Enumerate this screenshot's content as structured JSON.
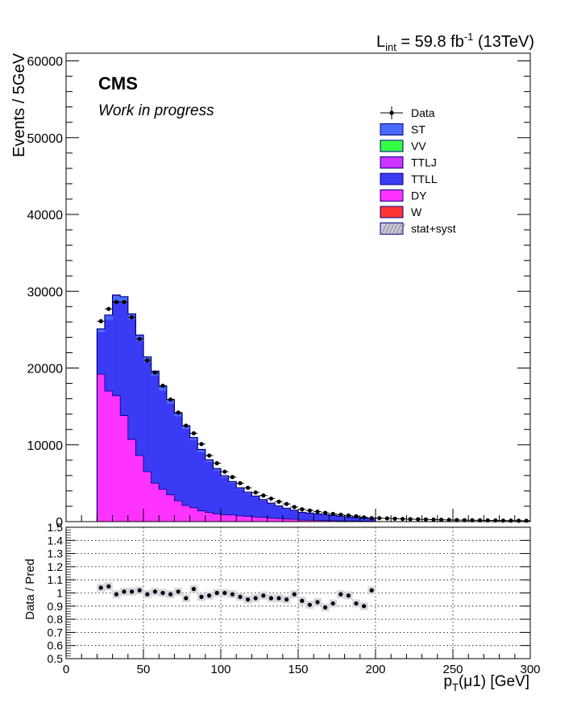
{
  "header": {
    "lumi_text": "L",
    "lumi_sub": "int",
    "lumi_value": " = 59.8 fb",
    "lumi_sup": "-1",
    "lumi_energy": " (13TeV)"
  },
  "labels": {
    "cms": "CMS",
    "status": "Work in progress"
  },
  "colors": {
    "ST": "#4a6bff",
    "VV": "#33ff44",
    "TTLJ": "#cc33ff",
    "TTLL": "#3b3bf5",
    "DY": "#ff33ff",
    "W": "#ff3333",
    "outline": "#000080"
  },
  "chart_data": [
    {
      "type": "bar",
      "subtype": "stacked-histogram",
      "ylabel": "Events / 5GeV",
      "xlim": [
        0,
        300
      ],
      "ylim": [
        0,
        61000
      ],
      "yticks": [
        0,
        10000,
        20000,
        30000,
        40000,
        50000,
        60000
      ],
      "ytick_labels": [
        "0",
        "10000",
        "20000",
        "30000",
        "40000",
        "50000",
        "60000"
      ],
      "bin_width": 5,
      "bin_lo": [
        20,
        25,
        30,
        35,
        40,
        45,
        50,
        55,
        60,
        65,
        70,
        75,
        80,
        85,
        90,
        95,
        100,
        105,
        110,
        115,
        120,
        125,
        130,
        135,
        140,
        145,
        150,
        155,
        160,
        165,
        170,
        175,
        180,
        185,
        190,
        195
      ],
      "series": [
        {
          "name": "DY",
          "values": [
            19200,
            17000,
            16400,
            13800,
            10700,
            8600,
            6500,
            5000,
            4200,
            3500,
            2700,
            2100,
            1800,
            1400,
            1200,
            1000,
            900,
            850,
            750,
            700,
            600,
            550,
            450,
            400,
            350,
            300,
            200,
            180,
            160,
            140,
            120,
            100,
            80,
            70,
            60,
            50
          ]
        },
        {
          "name": "TTLL",
          "values": [
            5500,
            9300,
            12400,
            14700,
            15600,
            15000,
            14300,
            14000,
            12900,
            11900,
            11000,
            10000,
            8800,
            7700,
            6600,
            5700,
            4900,
            4200,
            3500,
            3000,
            2600,
            2200,
            1850,
            1550,
            1300,
            1100,
            950,
            870,
            800,
            730,
            650,
            570,
            500,
            450,
            400,
            370
          ]
        },
        {
          "name": "ST",
          "values": [
            400,
            600,
            700,
            800,
            750,
            700,
            650,
            600,
            550,
            500,
            450,
            400,
            350,
            300,
            250,
            200,
            180,
            160,
            150,
            140,
            120,
            110,
            100,
            90,
            80,
            70,
            60,
            50,
            40,
            40,
            30,
            30,
            20,
            20,
            20,
            20
          ]
        }
      ],
      "data_x": [
        22.5,
        27.5,
        32.5,
        37.5,
        42.5,
        47.5,
        52.5,
        57.5,
        62.5,
        67.5,
        72.5,
        77.5,
        82.5,
        87.5,
        92.5,
        97.5,
        102.5,
        107.5,
        112.5,
        117.5,
        122.5,
        127.5,
        132.5,
        137.5,
        142.5,
        147.5,
        152.5,
        157.5,
        162.5,
        167.5,
        172.5,
        177.5,
        182.5,
        187.5,
        192.5,
        197.5,
        202.5,
        207.5,
        212.5,
        217.5,
        222.5,
        227.5,
        232.5,
        237.5,
        242.5,
        247.5,
        252.5,
        257.5,
        262.5,
        267.5,
        272.5,
        277.5,
        282.5,
        287.5,
        292.5,
        297.5
      ],
      "data_y": [
        26100,
        27700,
        28600,
        28600,
        26600,
        23800,
        21000,
        19400,
        17700,
        15900,
        14200,
        12500,
        11500,
        10100,
        8600,
        7600,
        6500,
        5800,
        5000,
        4400,
        3800,
        3400,
        3000,
        2600,
        2300,
        1900,
        1600,
        1450,
        1300,
        1150,
        1000,
        900,
        800,
        700,
        560,
        450,
        450,
        420,
        380,
        350,
        320,
        300,
        280,
        260,
        240,
        220,
        200,
        190,
        180,
        170,
        160,
        150,
        140,
        130,
        120,
        110
      ],
      "legend": [
        "Data",
        "ST",
        "VV",
        "TTLJ",
        "TTLL",
        "DY",
        "W",
        "stat+syst"
      ],
      "legend_placement": "top-right"
    },
    {
      "type": "scatter",
      "ylabel": "Data / Pred",
      "xlabel": "p_T(μ1) [GeV]",
      "xlabel_parts": {
        "p": "p",
        "sub": "T",
        "rest": "(μ1) [GeV]"
      },
      "xlim": [
        0,
        300
      ],
      "ylim": [
        0.5,
        1.5
      ],
      "xticks": [
        0,
        50,
        100,
        150,
        200,
        250,
        300
      ],
      "xtick_labels": [
        "0",
        "50",
        "100",
        "150",
        "200",
        "250",
        "300"
      ],
      "yticks": [
        0.5,
        0.6,
        0.7,
        0.8,
        0.9,
        1.0,
        1.1,
        1.2,
        1.3,
        1.4,
        1.5
      ],
      "ytick_labels": [
        "0.5",
        "0.6",
        "0.7",
        "0.8",
        "0.9",
        "1",
        "1.1",
        "1.2",
        "1.3",
        "1.4",
        "1.5"
      ],
      "grid": true,
      "x": [
        22.5,
        27.5,
        32.5,
        37.5,
        42.5,
        47.5,
        52.5,
        57.5,
        62.5,
        67.5,
        72.5,
        77.5,
        82.5,
        87.5,
        92.5,
        97.5,
        102.5,
        107.5,
        112.5,
        117.5,
        122.5,
        127.5,
        132.5,
        137.5,
        142.5,
        147.5,
        152.5,
        157.5,
        162.5,
        167.5,
        172.5,
        177.5,
        182.5,
        187.5,
        192.5,
        197.5
      ],
      "y": [
        1.04,
        1.05,
        0.99,
        1.01,
        1.01,
        1.02,
        0.99,
        1.01,
        1.0,
        0.99,
        1.01,
        0.96,
        1.03,
        0.97,
        0.98,
        1.0,
        1.0,
        0.99,
        0.97,
        0.95,
        0.96,
        0.98,
        0.96,
        0.96,
        0.95,
        0.99,
        0.94,
        0.91,
        0.93,
        0.89,
        0.92,
        0.99,
        0.98,
        0.92,
        0.9,
        1.02
      ]
    }
  ]
}
